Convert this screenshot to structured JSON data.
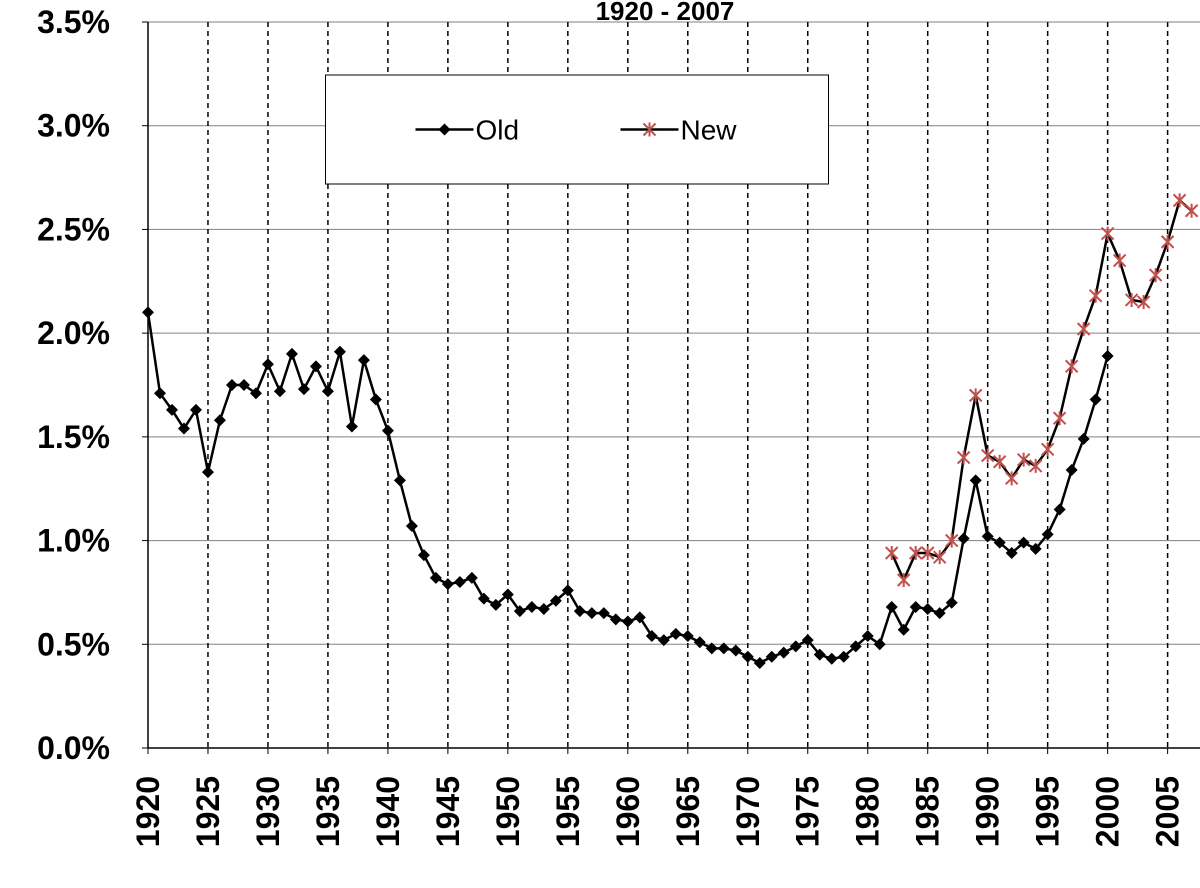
{
  "chart_data": {
    "type": "line",
    "title": "1920 - 2007",
    "x": [
      1920,
      1921,
      1922,
      1923,
      1924,
      1925,
      1926,
      1927,
      1928,
      1929,
      1930,
      1931,
      1932,
      1933,
      1934,
      1935,
      1936,
      1937,
      1938,
      1939,
      1940,
      1941,
      1942,
      1943,
      1944,
      1945,
      1946,
      1947,
      1948,
      1949,
      1950,
      1951,
      1952,
      1953,
      1954,
      1955,
      1956,
      1957,
      1958,
      1959,
      1960,
      1961,
      1962,
      1963,
      1964,
      1965,
      1966,
      1967,
      1968,
      1969,
      1970,
      1971,
      1972,
      1973,
      1974,
      1975,
      1976,
      1977,
      1978,
      1979,
      1980,
      1981,
      1982,
      1983,
      1984,
      1985,
      1986,
      1987,
      1988,
      1989,
      1990,
      1991,
      1992,
      1993,
      1994,
      1995,
      1996,
      1997,
      1998,
      1999,
      2000,
      2001,
      2002,
      2003,
      2004,
      2005,
      2006,
      2007
    ],
    "series": [
      {
        "name": "Old",
        "color": "#000000",
        "marker": "diamond",
        "marker_color": "#000000",
        "values": [
          2.1,
          1.71,
          1.63,
          1.54,
          1.63,
          1.33,
          1.58,
          1.75,
          1.75,
          1.71,
          1.85,
          1.72,
          1.9,
          1.73,
          1.84,
          1.72,
          1.91,
          1.55,
          1.87,
          1.68,
          1.53,
          1.29,
          1.07,
          0.93,
          0.82,
          0.79,
          0.8,
          0.82,
          0.72,
          0.69,
          0.74,
          0.66,
          0.68,
          0.67,
          0.71,
          0.76,
          0.66,
          0.65,
          0.65,
          0.62,
          0.61,
          0.63,
          0.54,
          0.52,
          0.55,
          0.54,
          0.51,
          0.48,
          0.48,
          0.47,
          0.44,
          0.41,
          0.44,
          0.46,
          0.49,
          0.52,
          0.45,
          0.43,
          0.44,
          0.49,
          0.54,
          0.5,
          0.68,
          0.57,
          0.68,
          0.67,
          0.65,
          0.7,
          1.01,
          1.29,
          1.02,
          0.99,
          0.94,
          0.99,
          0.96,
          1.03,
          1.15,
          1.34,
          1.49,
          1.68,
          1.89,
          null,
          null,
          null,
          null,
          null,
          null,
          null
        ]
      },
      {
        "name": "New",
        "color": "#000000",
        "marker": "asterisk",
        "marker_color": "#c0504d",
        "values": [
          null,
          null,
          null,
          null,
          null,
          null,
          null,
          null,
          null,
          null,
          null,
          null,
          null,
          null,
          null,
          null,
          null,
          null,
          null,
          null,
          null,
          null,
          null,
          null,
          null,
          null,
          null,
          null,
          null,
          null,
          null,
          null,
          null,
          null,
          null,
          null,
          null,
          null,
          null,
          null,
          null,
          null,
          null,
          null,
          null,
          null,
          null,
          null,
          null,
          null,
          null,
          null,
          null,
          null,
          null,
          null,
          null,
          null,
          null,
          null,
          null,
          null,
          0.94,
          0.81,
          0.94,
          0.94,
          0.92,
          1.0,
          1.4,
          1.7,
          1.41,
          1.38,
          1.3,
          1.39,
          1.36,
          1.44,
          1.59,
          1.84,
          2.02,
          2.18,
          2.48,
          2.35,
          2.16,
          2.15,
          2.28,
          2.44,
          2.64,
          2.59
        ]
      }
    ],
    "xlim": [
      1920,
      2007.7
    ],
    "xticks": [
      1920,
      1925,
      1930,
      1935,
      1940,
      1945,
      1950,
      1955,
      1960,
      1965,
      1970,
      1975,
      1980,
      1985,
      1990,
      1995,
      2000,
      2005
    ],
    "ylim": [
      0,
      3.5
    ],
    "yticks": [
      {
        "value": 0,
        "label": "0.0%"
      },
      {
        "value": 0.5,
        "label": "0.5%"
      },
      {
        "value": 1,
        "label": "1.0%"
      },
      {
        "value": 1.5,
        "label": "1.5%"
      },
      {
        "value": 2,
        "label": "2.0%"
      },
      {
        "value": 2.5,
        "label": "2.5%"
      },
      {
        "value": 3,
        "label": "3.0%"
      },
      {
        "value": 3.5,
        "label": "3.5%"
      }
    ],
    "grid": true,
    "legend": "top-center"
  }
}
